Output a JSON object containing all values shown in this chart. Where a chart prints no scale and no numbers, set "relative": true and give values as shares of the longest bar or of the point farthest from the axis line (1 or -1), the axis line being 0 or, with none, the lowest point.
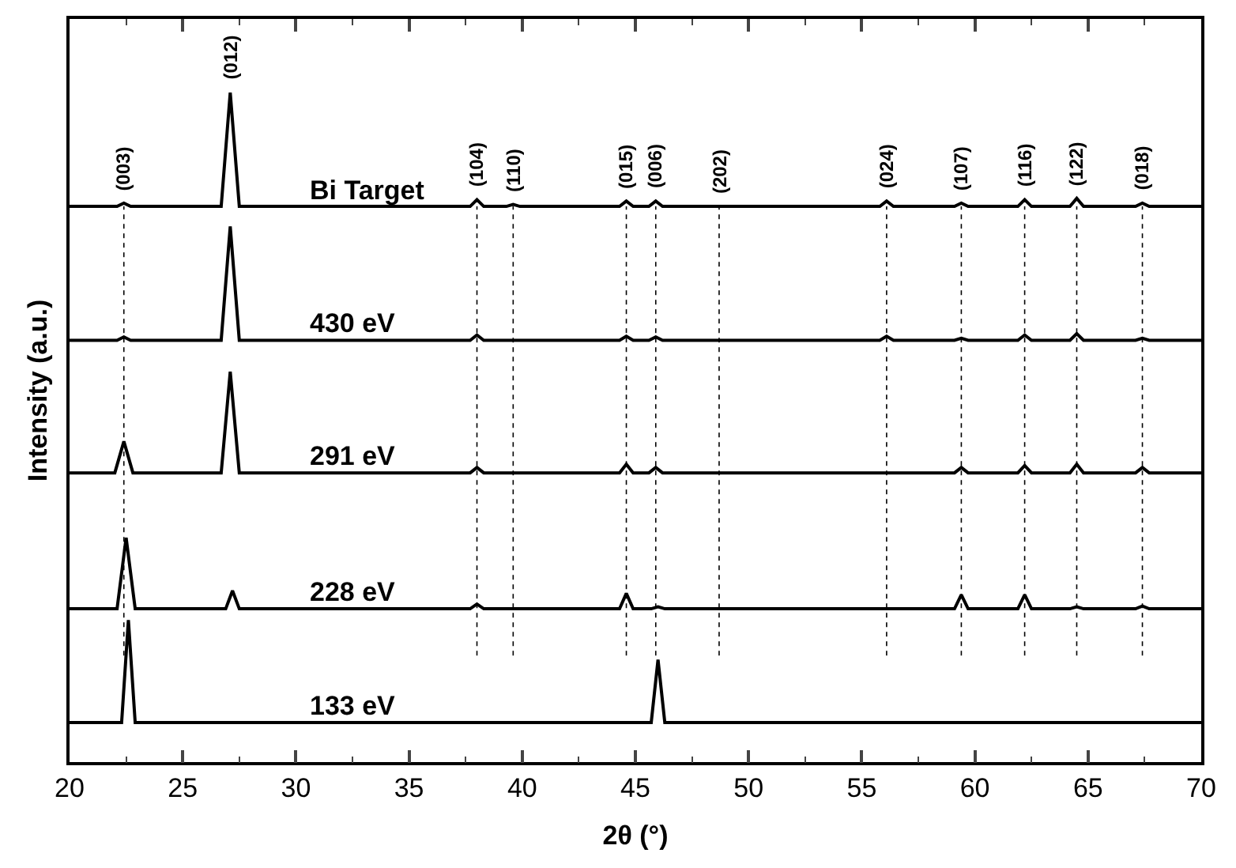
{
  "chart_data": {
    "type": "line",
    "relative": true,
    "xlabel": "2θ (°)",
    "ylabel": "Intensity (a.u.)",
    "xlim": [
      20,
      70
    ],
    "xticks": [
      20,
      25,
      30,
      35,
      40,
      45,
      50,
      55,
      60,
      65,
      70
    ],
    "legend": false,
    "marker": "none",
    "line_style": "solid",
    "series": [
      {
        "name": "Bi Target",
        "color": "#000000",
        "x": [
          20,
          22.1,
          22.4,
          22.7,
          26.7,
          27.1,
          27.5,
          37.7,
          38.0,
          38.3,
          39.3,
          39.6,
          39.9,
          44.3,
          44.6,
          44.9,
          45.6,
          45.9,
          46.2,
          55.8,
          56.1,
          56.4,
          59.1,
          59.4,
          59.7,
          61.9,
          62.2,
          62.5,
          64.2,
          64.5,
          64.8,
          67.1,
          67.4,
          67.7,
          70
        ],
        "values": [
          0.83,
          0.83,
          0.835,
          0.83,
          0.83,
          1.0,
          0.83,
          0.83,
          0.84,
          0.83,
          0.83,
          0.833,
          0.83,
          0.83,
          0.838,
          0.83,
          0.83,
          0.838,
          0.83,
          0.83,
          0.838,
          0.83,
          0.83,
          0.835,
          0.83,
          0.83,
          0.84,
          0.83,
          0.83,
          0.842,
          0.83,
          0.83,
          0.835,
          0.83,
          0.83
        ]
      },
      {
        "name": "430 eV",
        "color": "#000000",
        "x": [
          20,
          22.1,
          22.4,
          22.7,
          26.7,
          27.1,
          27.5,
          37.7,
          38.0,
          38.3,
          44.3,
          44.6,
          44.9,
          45.6,
          45.9,
          46.2,
          55.8,
          56.1,
          56.4,
          59.1,
          59.4,
          59.7,
          61.9,
          62.2,
          62.5,
          64.2,
          64.5,
          64.8,
          67.1,
          67.4,
          67.7,
          70
        ],
        "values": [
          0.63,
          0.63,
          0.635,
          0.63,
          0.63,
          0.8,
          0.63,
          0.63,
          0.638,
          0.63,
          0.63,
          0.636,
          0.63,
          0.63,
          0.635,
          0.63,
          0.63,
          0.636,
          0.63,
          0.63,
          0.633,
          0.63,
          0.63,
          0.638,
          0.63,
          0.63,
          0.64,
          0.63,
          0.63,
          0.633,
          0.63,
          0.63
        ]
      },
      {
        "name": "291 eV",
        "color": "#000000",
        "x": [
          20,
          22.0,
          22.4,
          22.8,
          26.7,
          27.1,
          27.5,
          37.7,
          38.0,
          38.3,
          44.3,
          44.6,
          44.9,
          45.6,
          45.9,
          46.2,
          59.1,
          59.4,
          59.7,
          61.9,
          62.2,
          62.5,
          64.2,
          64.5,
          64.8,
          67.1,
          67.4,
          67.7,
          70
        ],
        "values": [
          0.432,
          0.432,
          0.479,
          0.432,
          0.432,
          0.583,
          0.432,
          0.432,
          0.44,
          0.432,
          0.432,
          0.445,
          0.432,
          0.432,
          0.44,
          0.432,
          0.432,
          0.44,
          0.432,
          0.432,
          0.443,
          0.432,
          0.432,
          0.445,
          0.432,
          0.432,
          0.44,
          0.432,
          0.432
        ]
      },
      {
        "name": "228 eV",
        "color": "#000000",
        "x": [
          20,
          22.1,
          22.5,
          22.9,
          26.9,
          27.2,
          27.5,
          37.7,
          38.0,
          38.3,
          44.3,
          44.6,
          44.9,
          45.7,
          46.0,
          46.3,
          59.1,
          59.4,
          59.7,
          61.9,
          62.2,
          62.5,
          64.2,
          64.5,
          64.8,
          67.1,
          67.4,
          67.7,
          70
        ],
        "values": [
          0.229,
          0.229,
          0.335,
          0.229,
          0.229,
          0.256,
          0.229,
          0.229,
          0.236,
          0.229,
          0.229,
          0.252,
          0.229,
          0.229,
          0.232,
          0.229,
          0.229,
          0.25,
          0.229,
          0.229,
          0.25,
          0.229,
          0.229,
          0.232,
          0.229,
          0.229,
          0.233,
          0.229,
          0.229
        ]
      },
      {
        "name": "133 eV",
        "color": "#000000",
        "x": [
          20,
          22.3,
          22.6,
          22.9,
          45.7,
          46.0,
          46.3,
          70
        ],
        "values": [
          0.059,
          0.059,
          0.212,
          0.059,
          0.059,
          0.153,
          0.059,
          0.059
        ]
      }
    ],
    "ref_lines": [
      {
        "axis": "x",
        "value": 22.4,
        "color": "#000000",
        "line_style": "dotted"
      },
      {
        "axis": "x",
        "value": 38.0,
        "color": "#000000",
        "line_style": "dotted"
      },
      {
        "axis": "x",
        "value": 39.6,
        "color": "#000000",
        "line_style": "dotted"
      },
      {
        "axis": "x",
        "value": 44.6,
        "color": "#000000",
        "line_style": "dotted"
      },
      {
        "axis": "x",
        "value": 45.9,
        "color": "#000000",
        "line_style": "dotted"
      },
      {
        "axis": "x",
        "value": 48.7,
        "color": "#000000",
        "line_style": "dotted"
      },
      {
        "axis": "x",
        "value": 56.1,
        "color": "#000000",
        "line_style": "dotted"
      },
      {
        "axis": "x",
        "value": 59.4,
        "color": "#000000",
        "line_style": "dotted"
      },
      {
        "axis": "x",
        "value": 62.2,
        "color": "#000000",
        "line_style": "dotted"
      },
      {
        "axis": "x",
        "value": 64.5,
        "color": "#000000",
        "line_style": "dotted"
      },
      {
        "axis": "x",
        "value": 67.4,
        "color": "#000000",
        "line_style": "dotted"
      }
    ],
    "annotations": [
      {
        "text": "(003)",
        "x": 22.4,
        "y": 0.835
      },
      {
        "text": "(012)",
        "x": 27.1,
        "y": 1.0
      },
      {
        "text": "(104)",
        "x": 38.0,
        "y": 0.84
      },
      {
        "text": "(110)",
        "x": 39.6,
        "y": 0.833
      },
      {
        "text": "(015)",
        "x": 44.6,
        "y": 0.838
      },
      {
        "text": "(006)",
        "x": 45.9,
        "y": 0.838
      },
      {
        "text": "(202)",
        "x": 48.7,
        "y": 0.83
      },
      {
        "text": "(024)",
        "x": 56.1,
        "y": 0.838
      },
      {
        "text": "(107)",
        "x": 59.4,
        "y": 0.835
      },
      {
        "text": "(116)",
        "x": 62.2,
        "y": 0.84
      },
      {
        "text": "(122)",
        "x": 64.5,
        "y": 0.842
      },
      {
        "text": "(018)",
        "x": 67.4,
        "y": 0.835
      }
    ]
  }
}
